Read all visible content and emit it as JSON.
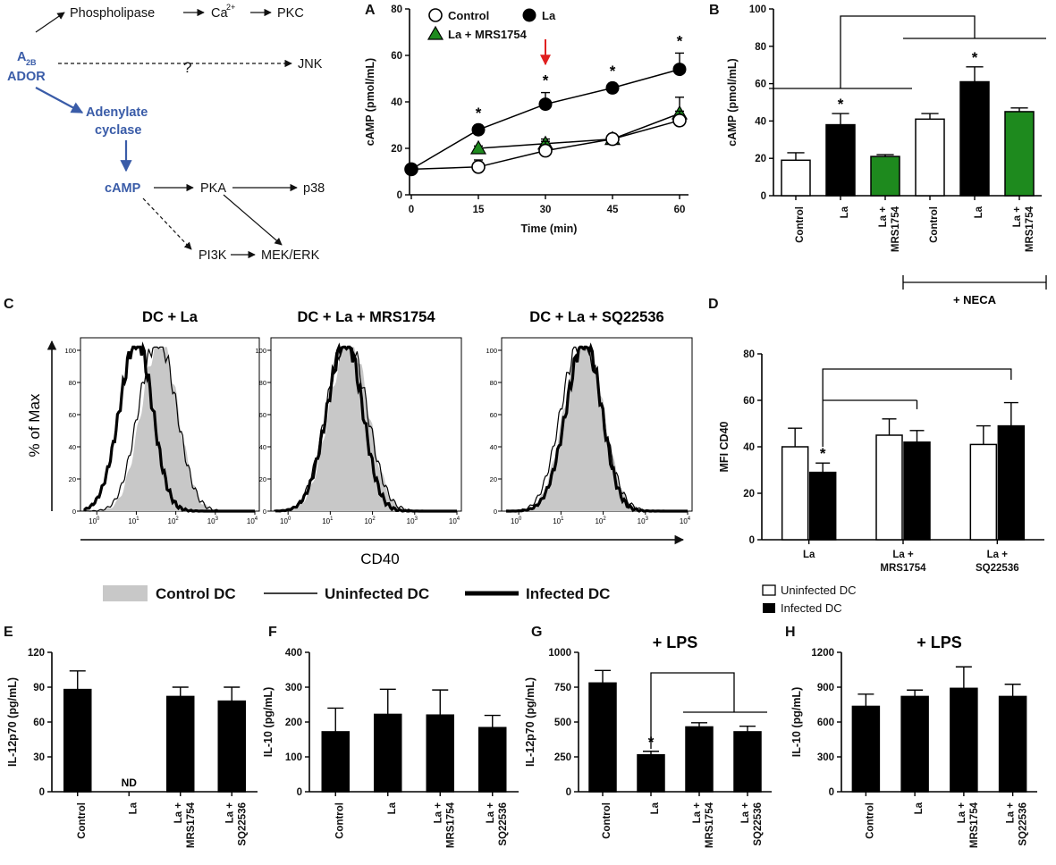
{
  "colors": {
    "blue": "#3a5ca8",
    "green": "#1e8a1e",
    "red": "#e02020",
    "gray": "#c8c8c8",
    "black": "#000000"
  },
  "panel_letters": [
    "A",
    "B",
    "C",
    "D",
    "E",
    "F",
    "G",
    "H"
  ],
  "pathway": {
    "receptor_a2": "A",
    "receptor_sub": "2B",
    "receptor_ador": "ADOR",
    "phospholipase": "Phospholipase",
    "ca_base": "Ca",
    "ca_sup": "2+",
    "pkc": "PKC",
    "question": "?",
    "jnk": "JNK",
    "adenylate_1": "Adenylate",
    "adenylate_2": "cyclase",
    "camp": "cAMP",
    "pka": "PKA",
    "p38": "p38",
    "pi3k": "PI3K",
    "mekerk": "MEK/ERK"
  },
  "legend_c": {
    "control": "Control DC",
    "uninfected": "Uninfected DC",
    "infected": "Infected DC"
  },
  "legend_d": {
    "uninfected": "Uninfected DC",
    "infected": "Infected DC"
  },
  "neca_label": "+ NECA",
  "nd_label": "ND",
  "chart_data": [
    {
      "id": "A",
      "type": "line",
      "xlabel": "Time (min)",
      "ylabel": "cAMP (pmol/mL)",
      "xlim": [
        0,
        60
      ],
      "ylim": [
        0,
        80
      ],
      "xticks": [
        0,
        15,
        30,
        45,
        60
      ],
      "yticks": [
        0,
        20,
        40,
        60,
        80
      ],
      "series": [
        {
          "name": "Control",
          "marker": "open-circle",
          "x": [
            0,
            15,
            30,
            45,
            60
          ],
          "y": [
            11,
            12,
            19,
            24,
            32
          ],
          "err": [
            1,
            3,
            4,
            2,
            4
          ]
        },
        {
          "name": "La",
          "marker": "filled-circle",
          "x": [
            0,
            15,
            30,
            45,
            60
          ],
          "y": [
            11,
            28,
            39,
            46,
            54
          ],
          "err": [
            1,
            2,
            5,
            2,
            7
          ]
        },
        {
          "name": "La + MRS1754",
          "marker": "green-triangle",
          "x": [
            15,
            30,
            45,
            60
          ],
          "y": [
            20,
            22,
            24,
            35
          ],
          "err": [
            1,
            2,
            2,
            7
          ]
        }
      ],
      "annotations": {
        "star_text": "*",
        "stars_at_x": [
          15,
          30,
          45,
          60
        ],
        "arrow_at_x": 30
      }
    },
    {
      "id": "B",
      "type": "bar",
      "ylabel": "cAMP (pmol/mL)",
      "ylim": [
        0,
        100
      ],
      "yticks": [
        0,
        20,
        40,
        60,
        80,
        100
      ],
      "categories": [
        "Control",
        "La",
        "La +\nMRS1754",
        "Control",
        "La",
        "La +\nMRS1754"
      ],
      "values": [
        19,
        38,
        21,
        41,
        61,
        45
      ],
      "errors": [
        4,
        6,
        1,
        3,
        8,
        2
      ],
      "fills": [
        "white",
        "black",
        "green",
        "white",
        "black",
        "green"
      ],
      "stars": [
        "",
        "*",
        "",
        "",
        "*",
        ""
      ],
      "group_label": "+ NECA"
    },
    {
      "id": "C",
      "type": "histogram-overlay",
      "ylabel": "% of Max",
      "xlabel": "CD40",
      "titles": [
        "DC + La",
        "DC + La + MRS1754",
        "DC + La + SQ22536"
      ],
      "yticks": [
        0,
        20,
        40,
        60,
        80,
        100
      ],
      "xtick_base": "10",
      "xtick_exp": [
        "0",
        "1",
        "2",
        "3",
        "4"
      ],
      "peaks_log10": [
        {
          "control": 1.65,
          "uninfected": 1.6,
          "infected": 1.05
        },
        {
          "control": 1.5,
          "uninfected": 1.45,
          "infected": 1.4
        },
        {
          "control": 1.6,
          "uninfected": 1.55,
          "infected": 1.6
        }
      ]
    },
    {
      "id": "D",
      "type": "bar",
      "ylabel": "MFI CD40",
      "ylim": [
        0,
        80
      ],
      "yticks": [
        0,
        20,
        40,
        60,
        80
      ],
      "categories": [
        "La",
        "La +\nMRS1754",
        "La +\nSQ22536"
      ],
      "series": [
        {
          "name": "Uninfected DC",
          "fill": "white",
          "values": [
            40,
            45,
            41
          ],
          "errors": [
            8,
            7,
            8
          ]
        },
        {
          "name": "Infected DC",
          "fill": "black",
          "values": [
            29,
            42,
            49
          ],
          "errors": [
            4,
            5,
            10
          ]
        }
      ],
      "stars": [
        "*",
        "",
        ""
      ]
    },
    {
      "id": "E",
      "type": "bar",
      "ylabel": "IL-12p70 (pg/mL)",
      "ylim": [
        0,
        120
      ],
      "yticks": [
        0,
        30,
        60,
        90,
        120
      ],
      "categories": [
        "Control",
        "La",
        "La +\nMRS1754",
        "La +\nSQ22536"
      ],
      "values": [
        88,
        0,
        82,
        78
      ],
      "errors": [
        16,
        0,
        8,
        12
      ],
      "not_detected": [
        false,
        true,
        false,
        false
      ]
    },
    {
      "id": "F",
      "type": "bar",
      "ylabel": "IL-10 (pg/mL)",
      "ylim": [
        0,
        400
      ],
      "yticks": [
        0,
        100,
        200,
        300,
        400
      ],
      "categories": [
        "Control",
        "La",
        "La +\nMRS1754",
        "La +\nSQ22536"
      ],
      "values": [
        172,
        222,
        220,
        184
      ],
      "errors": [
        68,
        72,
        72,
        35
      ]
    },
    {
      "id": "G",
      "type": "bar",
      "title": "+ LPS",
      "ylabel": "IL-12p70 (pg/mL)",
      "ylim": [
        0,
        1000
      ],
      "yticks": [
        0,
        250,
        500,
        750,
        1000
      ],
      "categories": [
        "Control",
        "La",
        "La +\nMRS1754",
        "La +\nSQ22536"
      ],
      "values": [
        780,
        265,
        465,
        430
      ],
      "errors": [
        90,
        25,
        30,
        40
      ],
      "stars": [
        "",
        "*",
        "",
        ""
      ]
    },
    {
      "id": "H",
      "type": "bar",
      "title": "+ LPS",
      "ylabel": "IL-10 (pg/mL)",
      "ylim": [
        0,
        1200
      ],
      "yticks": [
        0,
        300,
        600,
        900,
        1200
      ],
      "categories": [
        "Control",
        "La",
        "La +\nMRS1754",
        "La +\nSQ22536"
      ],
      "values": [
        735,
        820,
        890,
        820
      ],
      "errors": [
        105,
        55,
        185,
        105
      ]
    }
  ]
}
